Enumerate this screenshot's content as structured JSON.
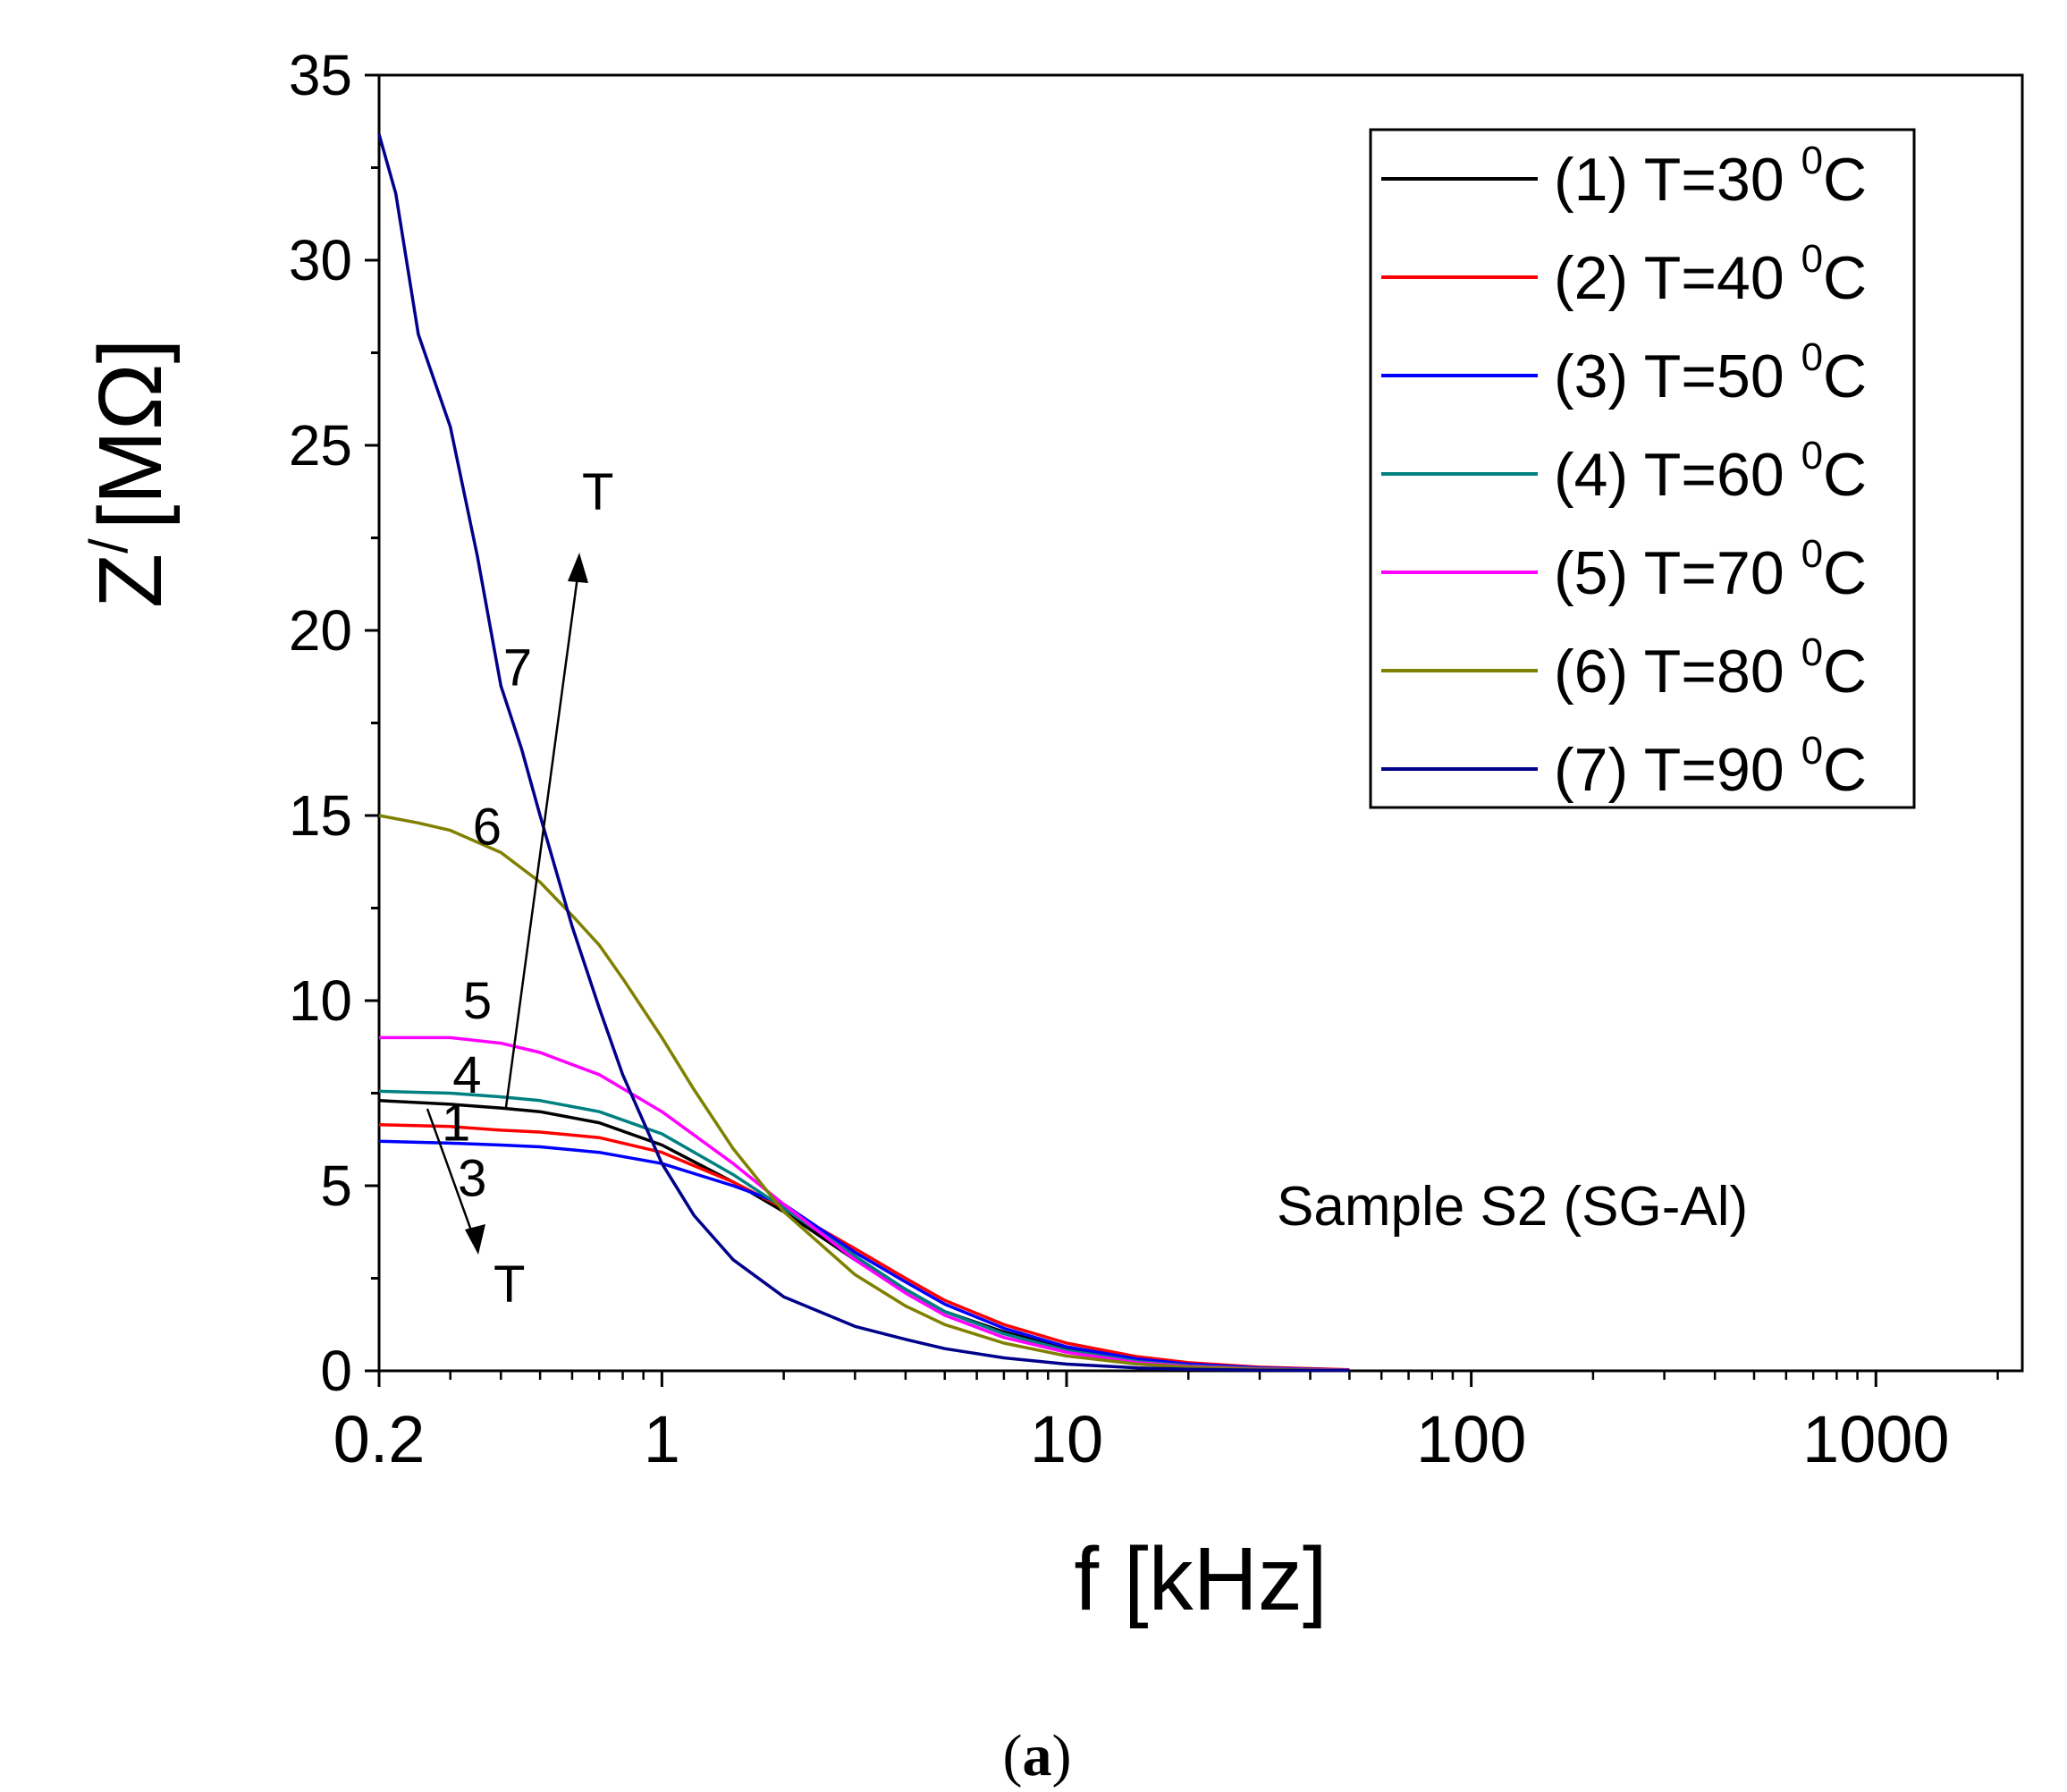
{
  "chart_data": {
    "type": "line",
    "title": "",
    "xlabel": "f [kHz]",
    "ylabel_main": "Z",
    "ylabel_prime": "/",
    "ylabel_unit": "[MΩ]",
    "xscale": "log",
    "xlim": [
      0.2,
      2300
    ],
    "ylim": [
      0,
      35
    ],
    "xticks": [
      {
        "value": 0.2,
        "label": "0.2"
      },
      {
        "value": 1,
        "label": "1"
      },
      {
        "value": 10,
        "label": "10"
      },
      {
        "value": 100,
        "label": "100"
      },
      {
        "value": 1000,
        "label": "1000"
      }
    ],
    "yticks": [
      {
        "value": 0,
        "label": "0"
      },
      {
        "value": 5,
        "label": "5"
      },
      {
        "value": 10,
        "label": "10"
      },
      {
        "value": 15,
        "label": "15"
      },
      {
        "value": 20,
        "label": "20"
      },
      {
        "value": 25,
        "label": "25"
      },
      {
        "value": 30,
        "label": "30"
      },
      {
        "value": 35,
        "label": "35"
      }
    ],
    "legend_position": "top-right",
    "series": [
      {
        "id": "1",
        "name": "(1) T=30",
        "color": "#000000",
        "x": [
          0.2,
          0.3,
          0.4,
          0.5,
          0.7,
          1.0,
          1.5,
          2,
          3,
          4,
          5,
          7,
          10,
          15,
          20,
          30,
          50
        ],
        "y": [
          7.3,
          7.2,
          7.1,
          7.0,
          6.7,
          6.1,
          5.1,
          4.3,
          3.0,
          2.2,
          1.6,
          1.05,
          0.6,
          0.3,
          0.18,
          0.08,
          0.02
        ]
      },
      {
        "id": "2",
        "name": "(2) T=40",
        "color": "#ff0000",
        "x": [
          0.2,
          0.3,
          0.4,
          0.5,
          0.7,
          1.0,
          1.5,
          2,
          3,
          4,
          5,
          7,
          10,
          15,
          20,
          30,
          50
        ],
        "y": [
          6.65,
          6.6,
          6.5,
          6.45,
          6.3,
          5.9,
          5.1,
          4.4,
          3.3,
          2.5,
          1.9,
          1.25,
          0.75,
          0.38,
          0.22,
          0.1,
          0.03
        ]
      },
      {
        "id": "3",
        "name": "(3) T=50",
        "color": "#0000ff",
        "x": [
          0.2,
          0.3,
          0.4,
          0.5,
          0.7,
          1.0,
          1.5,
          2,
          3,
          4,
          5,
          7,
          10,
          15,
          20,
          30,
          50
        ],
        "y": [
          6.2,
          6.15,
          6.1,
          6.05,
          5.9,
          5.6,
          5.0,
          4.5,
          3.2,
          2.4,
          1.8,
          1.15,
          0.65,
          0.32,
          0.18,
          0.08,
          0.02
        ]
      },
      {
        "id": "4",
        "name": "(4) T=60",
        "color": "#008080",
        "x": [
          0.2,
          0.3,
          0.4,
          0.5,
          0.7,
          1.0,
          1.5,
          2,
          3,
          4,
          5,
          7,
          10,
          15,
          20,
          30,
          50
        ],
        "y": [
          7.55,
          7.5,
          7.4,
          7.3,
          7.0,
          6.4,
          5.3,
          4.4,
          3.1,
          2.2,
          1.6,
          1.0,
          0.55,
          0.25,
          0.14,
          0.06,
          0.02
        ]
      },
      {
        "id": "5",
        "name": "(5) T=70",
        "color": "#ff00ff",
        "x": [
          0.2,
          0.3,
          0.4,
          0.5,
          0.7,
          1.0,
          1.5,
          2,
          3,
          4,
          5,
          7,
          10,
          15,
          20,
          30,
          50
        ],
        "y": [
          9.0,
          9.0,
          8.85,
          8.6,
          8.0,
          7.0,
          5.6,
          4.5,
          3.0,
          2.1,
          1.5,
          0.9,
          0.5,
          0.22,
          0.12,
          0.05,
          0.02
        ]
      },
      {
        "id": "6",
        "name": "(6) T=80",
        "color": "#808000",
        "x": [
          0.2,
          0.25,
          0.3,
          0.4,
          0.5,
          0.6,
          0.7,
          0.8,
          1.0,
          1.2,
          1.5,
          2,
          3,
          4,
          5,
          7,
          10,
          15,
          20,
          30,
          50
        ],
        "y": [
          15.0,
          14.8,
          14.6,
          14.0,
          13.2,
          12.3,
          11.5,
          10.6,
          9.0,
          7.6,
          6.0,
          4.3,
          2.6,
          1.75,
          1.25,
          0.75,
          0.4,
          0.18,
          0.1,
          0.04,
          0.01
        ]
      },
      {
        "id": "7",
        "name": "(7) T=90",
        "color": "#00008b",
        "x": [
          0.2,
          0.22,
          0.25,
          0.3,
          0.35,
          0.4,
          0.45,
          0.5,
          0.6,
          0.7,
          0.8,
          1.0,
          1.2,
          1.5,
          2,
          3,
          4,
          5,
          7,
          10,
          15,
          20,
          30,
          50
        ],
        "y": [
          33.4,
          31.8,
          28.0,
          25.5,
          22.0,
          18.5,
          16.8,
          15.0,
          12.0,
          9.8,
          8.0,
          5.6,
          4.2,
          3.0,
          2.0,
          1.2,
          0.85,
          0.6,
          0.35,
          0.18,
          0.08,
          0.04,
          0.02,
          0.01
        ]
      }
    ],
    "legend_superscript": "0",
    "legend_unit": "C",
    "annotations": {
      "sample_label": "Sample S2 (SG-Al)",
      "arrow_up_label": "T",
      "arrow_down_label": "T",
      "curve_labels": [
        {
          "text": "7",
          "x": 0.44,
          "y": 19.0
        },
        {
          "text": "6",
          "x": 0.37,
          "y": 14.7
        },
        {
          "text": "5",
          "x": 0.35,
          "y": 10.0
        },
        {
          "text": "4",
          "x": 0.33,
          "y": 8.0
        },
        {
          "text": "1",
          "x": 0.31,
          "y": 6.7
        },
        {
          "text": "3",
          "x": 0.34,
          "y": 5.2
        }
      ]
    }
  },
  "caption": {
    "open": "(",
    "letter": "a",
    "close": ")"
  }
}
